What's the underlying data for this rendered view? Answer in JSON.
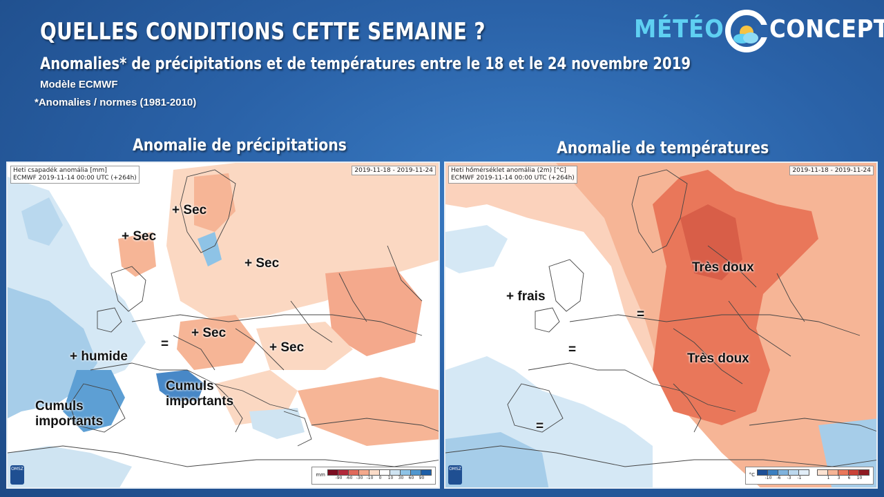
{
  "header": {
    "title": "QUELLES CONDITIONS CETTE SEMAINE ?",
    "subtitle": "Anomalies* de précipitations et de températures entre le 18 et le 24 novembre 2019",
    "model": "Modèle ECMWF",
    "norms": "*Anomalies / normes (1981-2010)"
  },
  "logo": {
    "meteo": "MÉTÉO",
    "concept": "CONCEPT"
  },
  "left": {
    "panel_title": "Anomalie de précipitations",
    "header_line1": "Heti csapadék anomália [mm]",
    "header_line2": "ECMWF 2019-11-14 00:00 UTC (+264h)",
    "daterange": "2019-11-18 - 2019-11-24",
    "logo": "OMSZ",
    "legend_unit": "mm",
    "legend_ticks": [
      "-90",
      "-60",
      "-30",
      "-10",
      "0",
      "10",
      "30",
      "60",
      "90"
    ],
    "legend_colors": [
      "#7a0c1f",
      "#b2283a",
      "#e06a5c",
      "#f4a98c",
      "#fbdcc8",
      "#ffffff",
      "#cfe4f2",
      "#8ec3e6",
      "#4f97cf",
      "#1d5fa8"
    ],
    "labels": {
      "sec1": "+ Sec",
      "sec2": "+ Sec",
      "sec3": "+ Sec",
      "sec4": "+ Sec",
      "sec5": "+ Sec",
      "humide": "+ humide",
      "equal": "=",
      "cumuls1_a": "Cumuls",
      "cumuls1_b": "importants",
      "cumuls2_a": "Cumuls",
      "cumuls2_b": "importants"
    }
  },
  "right": {
    "panel_title": "Anomalie de températures",
    "header_line1": "Heti hőmérséklet anomália (2m) [°C]",
    "header_line2": "ECMWF 2019-11-14 00:00 UTC (+264h)",
    "daterange": "2019-11-18 - 2019-11-24",
    "logo": "OMSZ",
    "legend_unit": "°C",
    "legend_ticks_cold": [
      "-10",
      "-6",
      "-3",
      "-1"
    ],
    "legend_ticks_warm": [
      "1",
      "3",
      "6",
      "10"
    ],
    "legend_colors_cold": [
      "#1d4f96",
      "#3b7fc0",
      "#7fb3dd",
      "#bcd8ee",
      "#e2eef8"
    ],
    "legend_colors_warm": [
      "#fde3d2",
      "#f6b596",
      "#e9775a",
      "#c94237",
      "#8e1a22"
    ],
    "labels": {
      "doux1": "Très doux",
      "doux2": "Très doux",
      "frais": "+ frais",
      "eq1": "=",
      "eq2": "=",
      "eq3": "="
    }
  }
}
